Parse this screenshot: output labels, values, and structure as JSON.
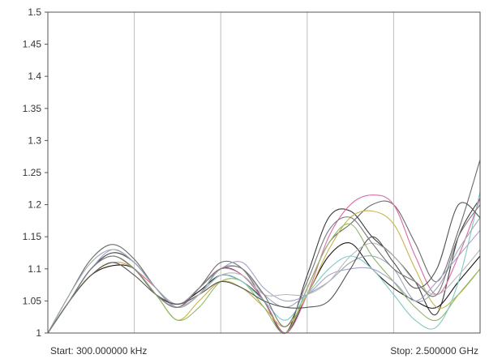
{
  "chart_data": {
    "type": "line",
    "title": "",
    "xlabel": "",
    "ylabel": "",
    "ylim": [
      1,
      1.5
    ],
    "xlim": [
      0,
      1
    ],
    "grid": true,
    "legend": "none",
    "y_ticks": [
      "1",
      "1.05",
      "1.1",
      "1.15",
      "1.2",
      "1.25",
      "1.3",
      "1.35",
      "1.4",
      "1.45",
      "1.5"
    ],
    "x_grid_divisions": 5,
    "start_label": "Start: 300.000000 kHz",
    "stop_label": "Stop: 2.500000 GHz",
    "x": [
      0,
      0.05,
      0.1,
      0.15,
      0.2,
      0.25,
      0.3,
      0.35,
      0.4,
      0.45,
      0.5,
      0.55,
      0.6,
      0.65,
      0.7,
      0.75,
      0.8,
      0.85,
      0.9,
      0.95,
      1
    ],
    "series": [
      {
        "color": "#6b6b6b",
        "values": [
          1.0,
          1.06,
          1.115,
          1.138,
          1.115,
          1.07,
          1.04,
          1.07,
          1.11,
          1.1,
          1.05,
          1.0,
          1.07,
          1.14,
          1.17,
          1.2,
          1.2,
          1.14,
          1.08,
          1.16,
          1.27
        ]
      },
      {
        "color": "#3c3c3c",
        "values": [
          1.0,
          1.05,
          1.1,
          1.125,
          1.11,
          1.07,
          1.04,
          1.06,
          1.1,
          1.09,
          1.05,
          1.0,
          1.09,
          1.18,
          1.19,
          1.15,
          1.12,
          1.08,
          1.03,
          1.15,
          1.21
        ]
      },
      {
        "color": "#1a1a1a",
        "values": [
          1.0,
          1.05,
          1.09,
          1.105,
          1.1,
          1.06,
          1.045,
          1.065,
          1.09,
          1.08,
          1.05,
          1.0,
          1.06,
          1.12,
          1.14,
          1.1,
          1.07,
          1.05,
          1.04,
          1.08,
          1.12
        ]
      },
      {
        "color": "#d96aa8",
        "values": [
          1.0,
          1.05,
          1.1,
          1.12,
          1.1,
          1.07,
          1.04,
          1.07,
          1.1,
          1.09,
          1.05,
          1.0,
          1.06,
          1.15,
          1.2,
          1.215,
          1.2,
          1.12,
          1.06,
          1.12,
          1.21
        ]
      },
      {
        "color": "#c8b24a",
        "values": [
          1.0,
          1.05,
          1.09,
          1.11,
          1.1,
          1.06,
          1.02,
          1.05,
          1.08,
          1.07,
          1.04,
          1.01,
          1.06,
          1.13,
          1.18,
          1.19,
          1.17,
          1.1,
          1.04,
          1.06,
          1.1
        ]
      },
      {
        "color": "#8fb86a",
        "values": [
          1.0,
          1.05,
          1.1,
          1.12,
          1.1,
          1.06,
          1.02,
          1.04,
          1.08,
          1.08,
          1.04,
          1.0,
          1.07,
          1.14,
          1.17,
          1.12,
          1.08,
          1.04,
          1.02,
          1.06,
          1.1
        ]
      },
      {
        "color": "#7fc9c4",
        "values": [
          1.0,
          1.05,
          1.1,
          1.12,
          1.1,
          1.06,
          1.04,
          1.06,
          1.09,
          1.08,
          1.05,
          1.02,
          1.06,
          1.1,
          1.12,
          1.1,
          1.06,
          1.02,
          1.01,
          1.08,
          1.22
        ]
      },
      {
        "color": "#a3a3c9",
        "values": [
          1.0,
          1.05,
          1.1,
          1.13,
          1.11,
          1.07,
          1.045,
          1.07,
          1.1,
          1.11,
          1.07,
          1.05,
          1.06,
          1.09,
          1.1,
          1.1,
          1.08,
          1.05,
          1.08,
          1.12,
          1.16
        ]
      },
      {
        "color": "#9aa9b3",
        "values": [
          1.0,
          1.06,
          1.11,
          1.13,
          1.11,
          1.07,
          1.04,
          1.06,
          1.1,
          1.1,
          1.06,
          1.04,
          1.06,
          1.08,
          1.11,
          1.12,
          1.1,
          1.05,
          1.07,
          1.13,
          1.18
        ]
      },
      {
        "color": "#555555",
        "values": [
          1.0,
          1.05,
          1.09,
          1.11,
          1.09,
          1.06,
          1.045,
          1.06,
          1.08,
          1.07,
          1.05,
          1.04,
          1.04,
          1.05,
          1.1,
          1.15,
          1.11,
          1.07,
          1.1,
          1.2,
          1.18
        ]
      },
      {
        "color": "#b8b8b8",
        "values": [
          1.0,
          1.05,
          1.1,
          1.12,
          1.1,
          1.06,
          1.04,
          1.06,
          1.09,
          1.09,
          1.06,
          1.06,
          1.06,
          1.08,
          1.12,
          1.14,
          1.12,
          1.08,
          1.06,
          1.09,
          1.13
        ]
      },
      {
        "color": "#777777",
        "values": [
          1.0,
          1.05,
          1.1,
          1.12,
          1.1,
          1.06,
          1.04,
          1.07,
          1.1,
          1.1,
          1.06,
          1.01,
          1.08,
          1.16,
          1.18,
          1.14,
          1.1,
          1.08,
          1.06,
          1.15,
          1.2
        ]
      }
    ]
  }
}
